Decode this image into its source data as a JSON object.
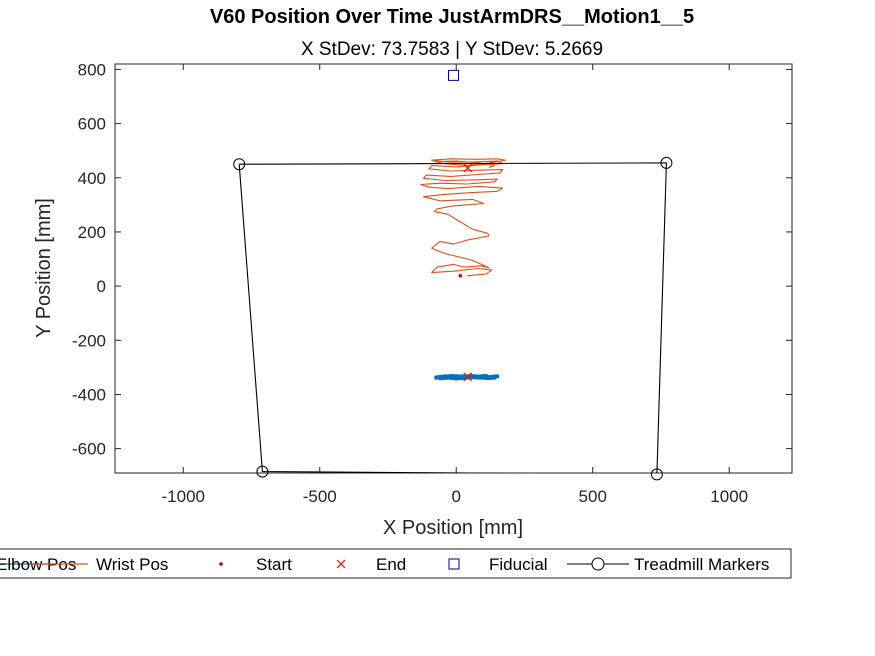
{
  "chart_data": {
    "type": "scatter",
    "title": "V60 Position Over Time JustArmDRS__Motion1__5",
    "subtitle": "X StDev: 73.7583  |  Y StDev: 5.2669",
    "xlabel": "X Position [mm]",
    "ylabel": "Y Position [mm]",
    "xlim": [
      -1250,
      1230
    ],
    "ylim": [
      -690,
      820
    ],
    "xticks": [
      -1000,
      -500,
      0,
      500,
      1000
    ],
    "yticks": [
      -600,
      -400,
      -200,
      0,
      200,
      400,
      600,
      800
    ],
    "grid": false,
    "legend_position": "bottom",
    "colors": {
      "elbow": "#0072BD",
      "wrist": "#D95319",
      "start": "#C00000",
      "end": "#FF0000",
      "fiducial": "#000080",
      "treadmill": "#000000"
    },
    "series": [
      {
        "name": "Elbow Pos",
        "type": "line",
        "points": [
          [
            -80,
            -339
          ],
          [
            -40,
            -333
          ],
          [
            0,
            -341
          ],
          [
            60,
            -332
          ],
          [
            120,
            -340
          ],
          [
            150,
            -333
          ],
          [
            100,
            -338
          ],
          [
            20,
            -335
          ],
          [
            -60,
            -340
          ],
          [
            -20,
            -332
          ],
          [
            80,
            -336
          ],
          [
            140,
            -338
          ],
          [
            50,
            -333
          ],
          [
            -70,
            -336
          ],
          [
            10,
            -340
          ],
          [
            110,
            -332
          ],
          [
            40,
            -337
          ]
        ]
      },
      {
        "name": "Wrist Pos",
        "type": "line",
        "points": [
          [
            40,
            38
          ],
          [
            110,
            45
          ],
          [
            130,
            60
          ],
          [
            80,
            65
          ],
          [
            -10,
            55
          ],
          [
            -90,
            50
          ],
          [
            -70,
            70
          ],
          [
            -10,
            80
          ],
          [
            30,
            70
          ],
          [
            90,
            75
          ],
          [
            120,
            68
          ],
          [
            60,
            95
          ],
          [
            -40,
            120
          ],
          [
            -90,
            140
          ],
          [
            -60,
            165
          ],
          [
            -10,
            155
          ],
          [
            40,
            170
          ],
          [
            120,
            185
          ],
          [
            115,
            195
          ],
          [
            60,
            210
          ],
          [
            10,
            240
          ],
          [
            -30,
            265
          ],
          [
            -80,
            275
          ],
          [
            -70,
            285
          ],
          [
            -20,
            295
          ],
          [
            40,
            300
          ],
          [
            100,
            305
          ],
          [
            60,
            320
          ],
          [
            -60,
            315
          ],
          [
            -120,
            330
          ],
          [
            -50,
            338
          ],
          [
            50,
            345
          ],
          [
            150,
            350
          ],
          [
            170,
            362
          ],
          [
            80,
            368
          ],
          [
            -30,
            360
          ],
          [
            -100,
            365
          ],
          [
            -130,
            375
          ],
          [
            -60,
            380
          ],
          [
            40,
            377
          ],
          [
            140,
            385
          ],
          [
            150,
            395
          ],
          [
            60,
            392
          ],
          [
            -40,
            390
          ],
          [
            -120,
            398
          ],
          [
            -110,
            410
          ],
          [
            -20,
            405
          ],
          [
            80,
            412
          ],
          [
            160,
            418
          ],
          [
            170,
            430
          ],
          [
            80,
            428
          ],
          [
            -20,
            425
          ],
          [
            -100,
            433
          ],
          [
            -90,
            445
          ],
          [
            0,
            440
          ],
          [
            90,
            448
          ],
          [
            170,
            452
          ],
          [
            150,
            462
          ],
          [
            60,
            458
          ],
          [
            -30,
            458
          ],
          [
            -90,
            465
          ],
          [
            -20,
            470
          ],
          [
            70,
            468
          ],
          [
            150,
            470
          ],
          [
            180,
            465
          ],
          [
            120,
            455
          ],
          [
            40,
            445
          ],
          [
            -40,
            452
          ],
          [
            -80,
            460
          ],
          [
            0,
            462
          ],
          [
            80,
            455
          ],
          [
            140,
            445
          ],
          [
            120,
            438
          ]
        ]
      },
      {
        "name": "Start",
        "type": "marker",
        "marker": "dot",
        "points": [
          [
            15,
            38
          ]
        ]
      },
      {
        "name": "End",
        "type": "marker",
        "marker": "x",
        "points": [
          [
            42,
            436
          ],
          [
            42,
            -335
          ]
        ]
      },
      {
        "name": "Fiducial",
        "type": "marker",
        "marker": "square",
        "points": [
          [
            -10,
            778
          ]
        ]
      },
      {
        "name": "Treadmill Markers",
        "type": "line+marker",
        "marker": "circle",
        "points": [
          [
            -795,
            450
          ],
          [
            770,
            455
          ],
          [
            735,
            -695
          ],
          [
            -710,
            -685
          ],
          [
            -795,
            450
          ]
        ]
      }
    ],
    "legend": [
      {
        "label": "Elbow Pos",
        "kind": "line",
        "color": "#0072BD"
      },
      {
        "label": "Wrist Pos",
        "kind": "line",
        "color": "#D95319"
      },
      {
        "label": "Start",
        "kind": "dot",
        "color": "#C00000"
      },
      {
        "label": "End",
        "kind": "x",
        "color": "#FF0000"
      },
      {
        "label": "Fiducial",
        "kind": "square",
        "color": "#000080"
      },
      {
        "label": "Treadmill Markers",
        "kind": "line-circle",
        "color": "#000000"
      }
    ]
  }
}
